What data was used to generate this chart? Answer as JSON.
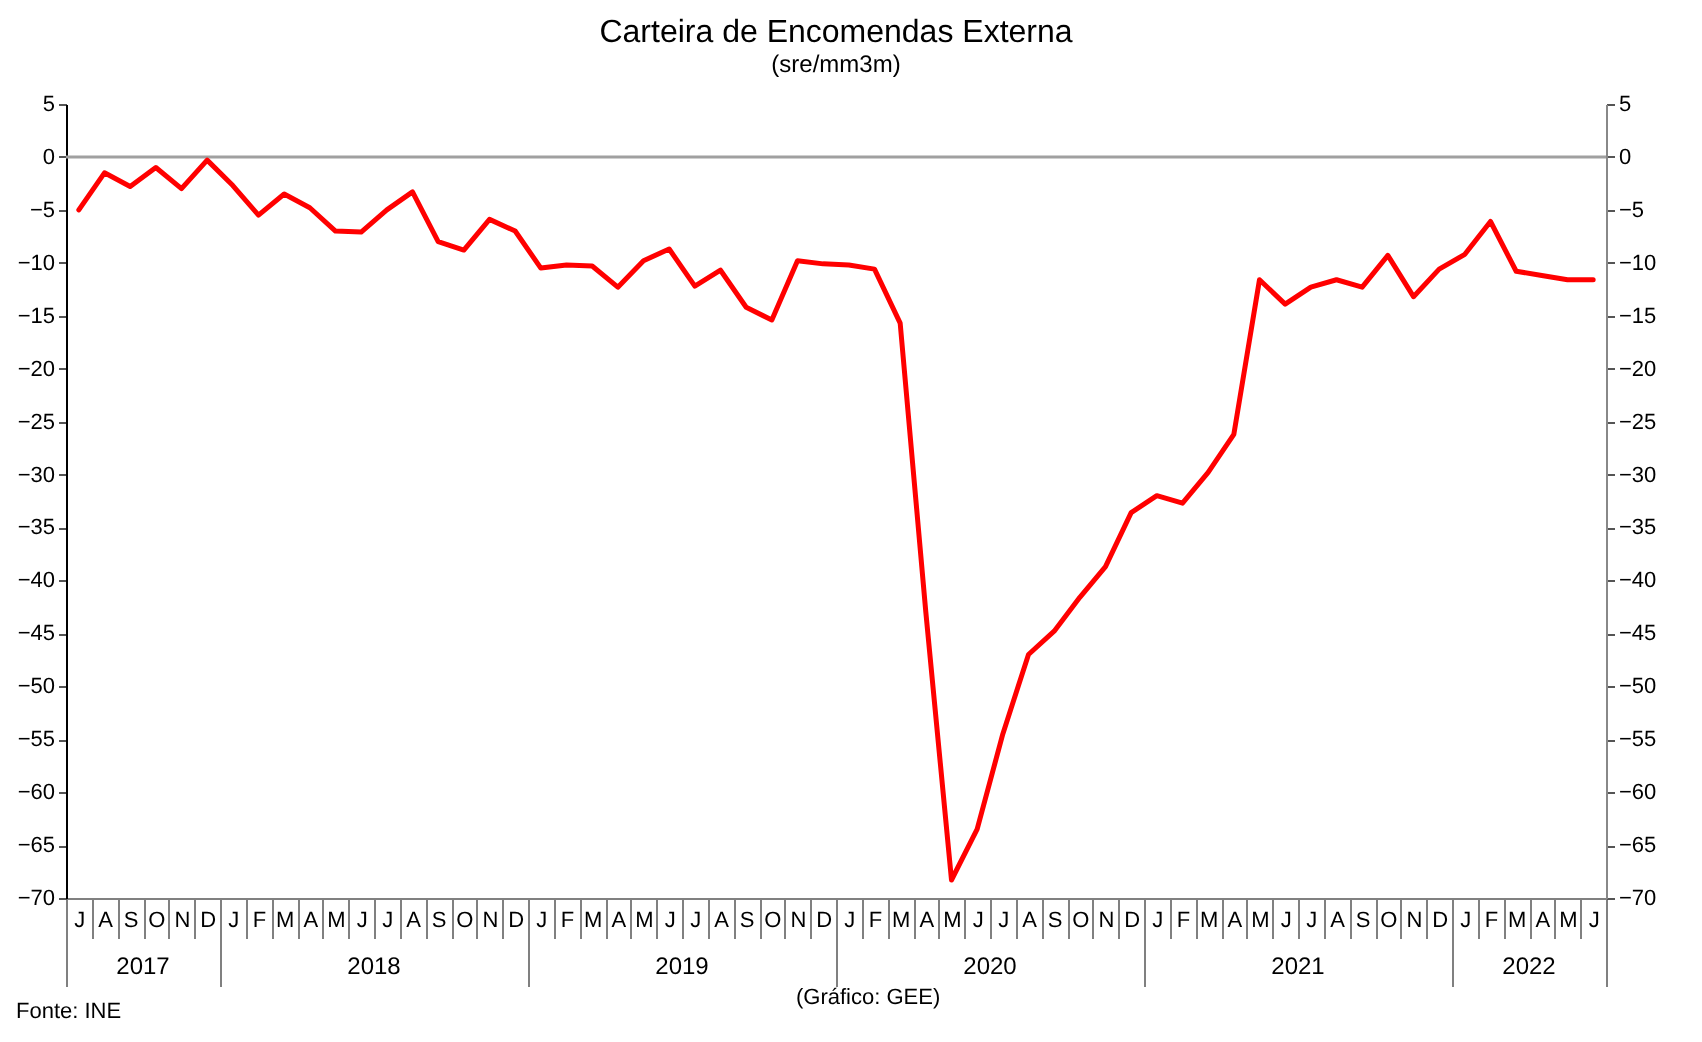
{
  "chart_data": {
    "type": "line",
    "title": "Carteira de Encomendas Externa",
    "subtitle": "(sre/mm3m)",
    "categories": [
      "J",
      "A",
      "S",
      "O",
      "N",
      "D",
      "J",
      "F",
      "M",
      "A",
      "M",
      "J",
      "J",
      "A",
      "S",
      "O",
      "N",
      "D",
      "J",
      "F",
      "M",
      "A",
      "M",
      "J",
      "J",
      "A",
      "S",
      "O",
      "N",
      "D",
      "J",
      "F",
      "M",
      "A",
      "M",
      "J",
      "J",
      "A",
      "S",
      "O",
      "N",
      "D",
      "J",
      "F",
      "M",
      "A",
      "M",
      "J",
      "J",
      "A",
      "S",
      "O",
      "N",
      "D",
      "J",
      "F",
      "M",
      "A",
      "M",
      "J"
    ],
    "series": [
      {
        "color": "#ff0000",
        "values": [
          -5,
          -1.5,
          -2.8,
          -1,
          -3,
          -0.3,
          -2.7,
          -5.5,
          -3.5,
          -4.8,
          -7,
          -7.1,
          -5,
          -3.3,
          -8,
          -8.8,
          -5.9,
          -7,
          -10.5,
          -10.2,
          -10.3,
          -12.3,
          -9.8,
          -8.7,
          -12.2,
          -10.7,
          -14.2,
          -15.4,
          -9.8,
          -10.1,
          -10.2,
          -10.6,
          -15.7,
          -43,
          -68.3,
          -63.5,
          -54.5,
          -47,
          -44.8,
          -41.6,
          -38.7,
          -33.6,
          -32,
          -32.7,
          -29.8,
          -26.2,
          -11.6,
          -13.9,
          -12.3,
          -11.6,
          -12.3,
          -9.3,
          -13.2,
          -10.6,
          -9.2,
          -6.1,
          -10.8,
          -11.2,
          -11.6,
          -11.6
        ]
      }
    ],
    "ylim": [
      -70,
      5
    ],
    "yticks": [
      -70,
      -65,
      -60,
      -55,
      -50,
      -45,
      -40,
      -35,
      -30,
      -25,
      -20,
      -15,
      -10,
      -5,
      0,
      5
    ],
    "y2lim": [
      -70,
      5
    ],
    "y2ticks": [
      -70,
      -65,
      -60,
      -55,
      -50,
      -45,
      -40,
      -35,
      -30,
      -25,
      -20,
      -15,
      -10,
      -5,
      0,
      5
    ],
    "ref_lines": [
      {
        "axis": "y",
        "value": 0,
        "color": "#a0a0a0"
      }
    ],
    "grid": false,
    "line_style": "solid",
    "marker": "none",
    "annotations": [
      "Fonte: INE",
      "(Gráfico: GEE)",
      "2017",
      "2018",
      "2019",
      "2020",
      "2021",
      "2022"
    ]
  }
}
